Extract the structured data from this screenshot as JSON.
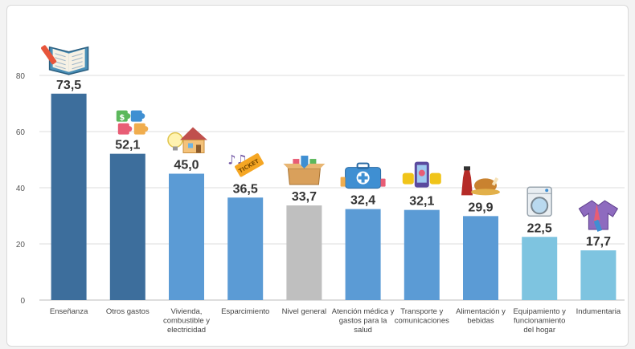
{
  "chart_data": {
    "type": "bar",
    "title": "",
    "xlabel": "",
    "ylabel": "",
    "ylim": [
      0,
      80
    ],
    "yticks": [
      0,
      20,
      40,
      60,
      80
    ],
    "grid": true,
    "categories": [
      "Enseñanza",
      "Otros gastos",
      "Vivienda, combustible y electricidad",
      "Esparcimiento",
      "Nivel general",
      "Atención médica y gastos para la salud",
      "Transporte y comunicaciones",
      "Alimentación y bebidas",
      "Equipamiento y funcionamiento del hogar",
      "Indumentaria"
    ],
    "category_lines": [
      [
        "Enseñanza"
      ],
      [
        "Otros gastos"
      ],
      [
        "Vivienda,",
        "combustible y",
        "electricidad"
      ],
      [
        "Esparcimiento"
      ],
      [
        "Nivel general"
      ],
      [
        "Atención médica y",
        "gastos para la",
        "salud"
      ],
      [
        "Transporte y",
        "comunicaciones"
      ],
      [
        "Alimentación y",
        "bebidas"
      ],
      [
        "Equipamiento y",
        "funcionamiento",
        "del hogar"
      ],
      [
        "Indumentaria"
      ]
    ],
    "values": [
      73.5,
      52.1,
      45.0,
      36.5,
      33.7,
      32.4,
      32.1,
      29.9,
      22.5,
      17.7
    ],
    "value_labels": [
      "73,5",
      "52,1",
      "45,0",
      "36,5",
      "33,7",
      "32,4",
      "32,1",
      "29,9",
      "22,5",
      "17,7"
    ],
    "icons": [
      "book-icon",
      "money-puzzle-icon",
      "house-icon",
      "ticket-icon",
      "box-icon",
      "medical-kit-icon",
      "transport-icon",
      "food-icon",
      "washing-machine-icon",
      "clothing-icon"
    ],
    "bar_colors": [
      "#3d6e9c",
      "#3d6e9c",
      "#5b9bd5",
      "#5b9bd5",
      "#bfbfbf",
      "#5b9bd5",
      "#5b9bd5",
      "#5b9bd5",
      "#7ec4e0",
      "#7ec4e0"
    ],
    "gridline_color": "#dddddd"
  }
}
